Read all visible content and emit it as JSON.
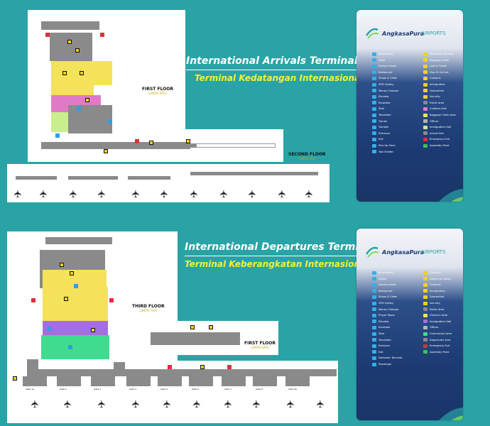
{
  "arrivals": {
    "title_en": "International Arrivals Terminal",
    "title_id": "Terminal Kedatangan Internasional",
    "floor1": {
      "label": "FIRST FLOOR",
      "sub": "LANTAI SATU"
    },
    "floor2": {
      "label": "SECOND FLOOR",
      "sub": "LANTAI DUA"
    }
  },
  "departures": {
    "title_en": "International Departures Terminal",
    "title_id": "Terminal Keberangkatan Internasional",
    "floor3": {
      "label": "THIRD FLOOR",
      "sub": "LANTAI TIGA"
    },
    "floor1": {
      "label": "FIRST FLOOR",
      "sub": "LANTAI SATU"
    },
    "gates": [
      "Gate 1A",
      "Gate 2",
      "Gate 3",
      "Gate 4",
      "Gate 5",
      "Gate 6",
      "Gate 7",
      "Gate 8",
      "Gate 9A"
    ]
  },
  "brand": {
    "name": "AngkasaPura",
    "suffix": "AIRPORTS"
  },
  "legend_arrivals": {
    "left": [
      {
        "icon": "information-icon",
        "label": "Information",
        "color": "#2fb2e8"
      },
      {
        "icon": "toilet-icon",
        "label": "Toilet",
        "color": "#2fb2e8"
      },
      {
        "icon": "nursery-icon",
        "label": "Nursery Room",
        "color": "#2fb2e8"
      },
      {
        "icon": "restaurant-icon",
        "label": "Restaurant",
        "color": "#2fb2e8"
      },
      {
        "icon": "cafe-icon",
        "label": "Shops & Cafes",
        "color": "#2fb2e8"
      },
      {
        "icon": "atm-icon",
        "label": "ATM Gallery",
        "color": "#2fb2e8"
      },
      {
        "icon": "money-changer-icon",
        "label": "Money Changer",
        "color": "#2fb2e8"
      },
      {
        "icon": "elevator-icon",
        "label": "Elevator",
        "color": "#2fb2e8"
      },
      {
        "icon": "escalator-icon",
        "label": "Escalator",
        "color": "#2fb2e8"
      },
      {
        "icon": "stair-icon",
        "label": "Stair",
        "color": "#2fb2e8"
      },
      {
        "icon": "travelator-icon",
        "label": "Travelator",
        "color": "#2fb2e8"
      },
      {
        "icon": "transit-icon",
        "label": "Transit",
        "color": "#2fb2e8"
      },
      {
        "icon": "transfer-icon",
        "label": "Transfer",
        "color": "#2fb2e8"
      },
      {
        "icon": "entrance-icon",
        "label": "Entrance",
        "color": "#2fb2e8"
      },
      {
        "icon": "exit-icon",
        "label": "Exit",
        "color": "#2fb2e8"
      },
      {
        "icon": "pick-up-zone-icon",
        "label": "Pick-Up Zone",
        "color": "#2fb2e8"
      },
      {
        "icon": "taxi-shelter-icon",
        "label": "Taxi Shelter",
        "color": "#2fb2e8"
      }
    ],
    "right": [
      {
        "icon": "domestic-terminal-icon",
        "label": "Domestic Terminal",
        "color": "#f2d21b"
      },
      {
        "icon": "baggage-claim-icon",
        "label": "Baggage Claim",
        "color": "#f2d21b"
      },
      {
        "icon": "lost-found-icon",
        "label": "Lost & Found",
        "color": "#f2d21b"
      },
      {
        "icon": "visa-on-arrival-icon",
        "label": "Visa On Arrival",
        "color": "#f2d21b"
      },
      {
        "icon": "customs-icon",
        "label": "Customs",
        "color": "#f2d21b"
      },
      {
        "icon": "immigration-icon",
        "label": "Immigration",
        "color": "#f2d21b"
      },
      {
        "icon": "quarantine-icon",
        "label": "Quarantine",
        "color": "#f2d21b"
      },
      {
        "icon": "security-icon",
        "label": "Security",
        "color": "#f2d21b"
      },
      {
        "icon": "public-area-swatch",
        "label": "Public Area",
        "color": "#8a8a8a"
      },
      {
        "icon": "customs-hall-swatch",
        "label": "Customs Hall",
        "color": "#e07ac6"
      },
      {
        "icon": "baggage-claim-area-swatch",
        "label": "Baggage Claim Area",
        "color": "#f4e25a"
      },
      {
        "icon": "offices-swatch",
        "label": "Offices",
        "color": "#b5b5b5"
      },
      {
        "icon": "immigration-hall-swatch",
        "label": "Immigration Hall",
        "color": "#c9ef8c"
      },
      {
        "icon": "arrival-hall-swatch",
        "label": "Arrival Hall",
        "color": "#8a8a8a"
      },
      {
        "icon": "emergency-exit-icon",
        "label": "Emergency Exit",
        "color": "#e0303a"
      },
      {
        "icon": "assembly-point-icon",
        "label": "Assembly Point",
        "color": "#3fbf5a"
      }
    ]
  },
  "legend_departures": {
    "left": [
      {
        "icon": "information-icon",
        "label": "Information",
        "color": "#2fb2e8"
      },
      {
        "icon": "toilet-icon",
        "label": "Toilets",
        "color": "#2fb2e8"
      },
      {
        "icon": "nursery-icon",
        "label": "Nursery Room",
        "color": "#2fb2e8"
      },
      {
        "icon": "restaurant-icon",
        "label": "Restaurant",
        "color": "#2fb2e8"
      },
      {
        "icon": "cafe-icon",
        "label": "Shops & Cafes",
        "color": "#2fb2e8"
      },
      {
        "icon": "atm-icon",
        "label": "ATM Gallery",
        "color": "#2fb2e8"
      },
      {
        "icon": "money-changer-icon",
        "label": "Money Changer",
        "color": "#2fb2e8"
      },
      {
        "icon": "prayer-room-icon",
        "label": "Prayer Room",
        "color": "#2fb2e8"
      },
      {
        "icon": "elevator-icon",
        "label": "Elevator",
        "color": "#2fb2e8"
      },
      {
        "icon": "escalator-icon",
        "label": "Escalator",
        "color": "#2fb2e8"
      },
      {
        "icon": "stair-icon",
        "label": "Stair",
        "color": "#2fb2e8"
      },
      {
        "icon": "travelator-icon",
        "label": "Travelator",
        "color": "#2fb2e8"
      },
      {
        "icon": "entrance-icon",
        "label": "Entrance",
        "color": "#2fb2e8"
      },
      {
        "icon": "exit-icon",
        "label": "Exit",
        "color": "#2fb2e8"
      },
      {
        "icon": "domestic-terminal-icon",
        "label": "Domestic Terminal",
        "color": "#2fb2e8"
      },
      {
        "icon": "passenger-icon",
        "label": "Passenger",
        "color": "#2fb2e8"
      }
    ],
    "right": [
      {
        "icon": "check-in-icon",
        "label": "Check-In",
        "color": "#f2d21b"
      },
      {
        "icon": "departure-gates-icon",
        "label": "Departure Gates",
        "color": "#f2d21b"
      },
      {
        "icon": "customs-icon",
        "label": "Customs",
        "color": "#f2d21b"
      },
      {
        "icon": "immigration-icon",
        "label": "Immigration",
        "color": "#f2d21b"
      },
      {
        "icon": "quarantine-icon",
        "label": "Quarantine",
        "color": "#f2d21b"
      },
      {
        "icon": "security-icon",
        "label": "Security",
        "color": "#f2d21b"
      },
      {
        "icon": "public-area-swatch",
        "label": "Public Area",
        "color": "#8a8a8a"
      },
      {
        "icon": "check-in-area-swatch",
        "label": "Check-In Area",
        "color": "#f4e25a"
      },
      {
        "icon": "immigration-hall-swatch",
        "label": "Immigration Hall",
        "color": "#a66de0"
      },
      {
        "icon": "offices-swatch",
        "label": "Offices",
        "color": "#b5b5b5"
      },
      {
        "icon": "commercial-area-swatch",
        "label": "Commercial Area",
        "color": "#3fdc8f"
      },
      {
        "icon": "departures-area-swatch",
        "label": "Departures Area",
        "color": "#8a8a8a"
      },
      {
        "icon": "emergency-exit-icon",
        "label": "Emergency Exit",
        "color": "#e0303a"
      },
      {
        "icon": "assembly-point-icon",
        "label": "Assembly Point",
        "color": "#3fbf5a"
      }
    ]
  }
}
